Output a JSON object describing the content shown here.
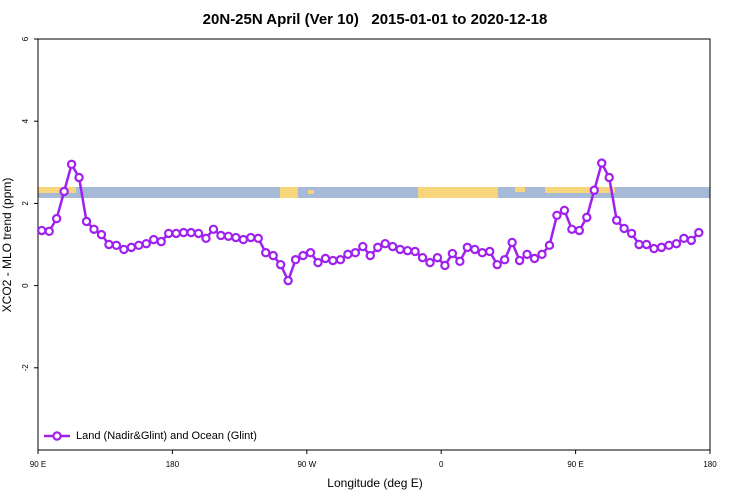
{
  "chart_data": {
    "type": "line",
    "title": "20N-25N April (Ver 10)   2015-01-01 to 2020-12-18",
    "x_label": "Longitude (deg E)",
    "y_label": "XCO2 - MLO trend (ppm)",
    "xlim": [
      90,
      540
    ],
    "ylim": [
      -4,
      6
    ],
    "xticks": [
      {
        "value": 90,
        "label": "90 E"
      },
      180,
      {
        "value": 270,
        "label": "90 W"
      },
      {
        "value": 360,
        "label": "0"
      },
      {
        "value": 450,
        "label": "90 E"
      },
      {
        "value": 540,
        "label": "180"
      }
    ],
    "yticks": [
      -2,
      0,
      2,
      4,
      6
    ],
    "legend": "bottom-left",
    "x": [
      92.5,
      97.5,
      102.5,
      107.5,
      112.5,
      117.5,
      122.5,
      127.5,
      132.5,
      137.5,
      142.5,
      147.5,
      152.5,
      157.5,
      162.5,
      167.5,
      172.5,
      177.5,
      182.5,
      187.5,
      192.5,
      197.5,
      202.5,
      207.5,
      212.5,
      217.5,
      222.5,
      227.5,
      232.5,
      237.5,
      242.5,
      247.5,
      252.5,
      257.5,
      262.5,
      267.5,
      272.5,
      277.5,
      282.5,
      287.5,
      292.5,
      297.5,
      302.5,
      307.5,
      312.5,
      317.5,
      322.5,
      327.5,
      332.5,
      337.5,
      342.5,
      347.5,
      352.5,
      357.5,
      362.5,
      367.5,
      372.5,
      377.5,
      382.5,
      387.5,
      392.5,
      397.5,
      402.5,
      407.5,
      412.5,
      417.5,
      422.5,
      427.5,
      432.5,
      437.5,
      442.5,
      447.5,
      452.5,
      457.5,
      462.5,
      467.5,
      472.5,
      477.5,
      482.5,
      487.5,
      492.5,
      497.5,
      502.5,
      507.5,
      512.5,
      517.5,
      522.5,
      527.5,
      532.5
    ],
    "series": [
      {
        "name": "Land (Nadir&Glint) and Ocean (Glint)",
        "color": "#a020f0",
        "values": [
          1.34,
          1.32,
          1.63,
          2.29,
          2.95,
          2.63,
          1.56,
          1.37,
          1.24,
          1.0,
          0.98,
          0.88,
          0.93,
          0.98,
          1.02,
          1.12,
          1.07,
          1.27,
          1.27,
          1.29,
          1.29,
          1.27,
          1.15,
          1.37,
          1.22,
          1.2,
          1.17,
          1.12,
          1.17,
          1.15,
          0.8,
          0.73,
          0.51,
          0.12,
          0.63,
          0.73,
          0.8,
          0.56,
          0.66,
          0.61,
          0.63,
          0.76,
          0.8,
          0.95,
          0.73,
          0.93,
          1.02,
          0.95,
          0.88,
          0.85,
          0.83,
          0.68,
          0.56,
          0.68,
          0.49,
          0.78,
          0.59,
          0.93,
          0.88,
          0.8,
          0.83,
          0.51,
          0.63,
          1.05,
          0.61,
          0.76,
          0.66,
          0.76,
          0.98,
          1.71,
          1.83,
          1.37,
          1.34,
          1.66,
          2.32,
          2.98,
          2.63,
          1.59,
          1.39,
          1.27,
          1.0,
          1.0,
          0.9,
          0.93,
          0.98,
          1.02,
          1.15,
          1.1,
          1.29
        ]
      }
    ]
  }
}
